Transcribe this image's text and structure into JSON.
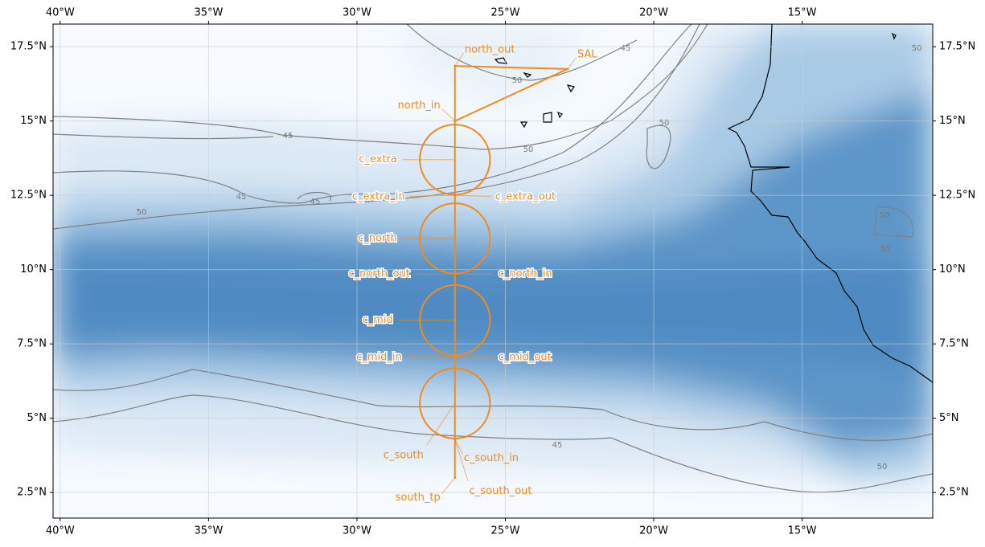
{
  "map": {
    "xlim": [
      -40.24,
      -10.6
    ],
    "ylim": [
      1.64,
      18.26
    ],
    "xticks": [
      {
        "value": -40,
        "label": "40°W"
      },
      {
        "value": -35,
        "label": "35°W"
      },
      {
        "value": -30,
        "label": "30°W"
      },
      {
        "value": -25,
        "label": "25°W"
      },
      {
        "value": -20,
        "label": "20°W"
      },
      {
        "value": -15,
        "label": "15°W"
      }
    ],
    "yticks": [
      {
        "value": 2.5,
        "label": "2.5°N"
      },
      {
        "value": 5,
        "label": "5°N"
      },
      {
        "value": 7.5,
        "label": "7.5°N"
      },
      {
        "value": 10,
        "label": "10°N"
      },
      {
        "value": 12.5,
        "label": "12.5°N"
      },
      {
        "value": 15,
        "label": "15°N"
      },
      {
        "value": 17.5,
        "label": "17.5°N"
      }
    ],
    "grid": true,
    "track_color": "#f28a1e",
    "waypoints": [
      {
        "label": "north_out",
        "lon": -26.7,
        "lat": 16.85
      },
      {
        "label": "SAL",
        "lon": -22.9,
        "lat": 16.75
      },
      {
        "label": "north_in",
        "lon": -26.7,
        "lat": 15.0
      },
      {
        "label": "c_extra",
        "lon": -26.7,
        "lat": 13.7,
        "radius": 1.18
      },
      {
        "label": "c_extra_in",
        "lon": -26.7,
        "lat": 12.5
      },
      {
        "label": "c_extra_out",
        "lon": -26.7,
        "lat": 12.5
      },
      {
        "label": "c_north",
        "lon": -26.7,
        "lat": 11.05,
        "radius": 1.18
      },
      {
        "label": "c_north_out",
        "lon": -26.7,
        "lat": 9.85
      },
      {
        "label": "c_north_in",
        "lon": -26.7,
        "lat": 9.85
      },
      {
        "label": "c_mid",
        "lon": -26.7,
        "lat": 8.3,
        "radius": 1.18
      },
      {
        "label": "c_mid_in",
        "lon": -26.7,
        "lat": 7.05
      },
      {
        "label": "c_mid_out",
        "lon": -26.7,
        "lat": 7.05
      },
      {
        "label": "c_south",
        "lon": -26.7,
        "lat": 5.5,
        "radius": 1.18
      },
      {
        "label": "c_south_in",
        "lon": -26.7,
        "lat": 4.3
      },
      {
        "label": "c_south_out",
        "lon": -26.7,
        "lat": 4.3
      },
      {
        "label": "south_tp",
        "lon": -26.7,
        "lat": 3.0
      }
    ],
    "contour_labels": [
      "45",
      "50",
      "45",
      "45",
      "50",
      "50",
      "45",
      "50",
      "50",
      "45",
      "50",
      "50",
      "50"
    ]
  }
}
